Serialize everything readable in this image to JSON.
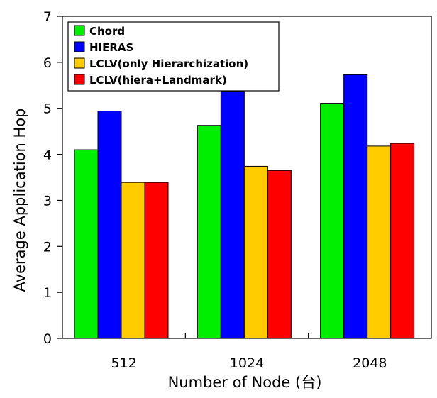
{
  "chart_data": {
    "type": "bar",
    "title": "",
    "xlabel": "Number of Node (台)",
    "ylabel": "Average Application Hop",
    "categories": [
      "512",
      "1024",
      "2048"
    ],
    "ylim": [
      0,
      7
    ],
    "yticks": [
      0,
      1,
      2,
      3,
      4,
      5,
      6,
      7
    ],
    "grid": false,
    "legend_position": "top-left",
    "series": [
      {
        "name": "Chord",
        "color": "#00ee00",
        "values": [
          4.1,
          4.63,
          5.11
        ]
      },
      {
        "name": "HIERAS",
        "color": "#0000ff",
        "values": [
          4.94,
          5.37,
          5.73
        ]
      },
      {
        "name": "LCLV(only Hierarchization)",
        "color": "#ffcc00",
        "values": [
          3.39,
          3.74,
          4.18
        ]
      },
      {
        "name": "LCLV(hiera+Landmark)",
        "color": "#ff0000",
        "values": [
          3.39,
          3.65,
          4.24
        ]
      }
    ]
  }
}
